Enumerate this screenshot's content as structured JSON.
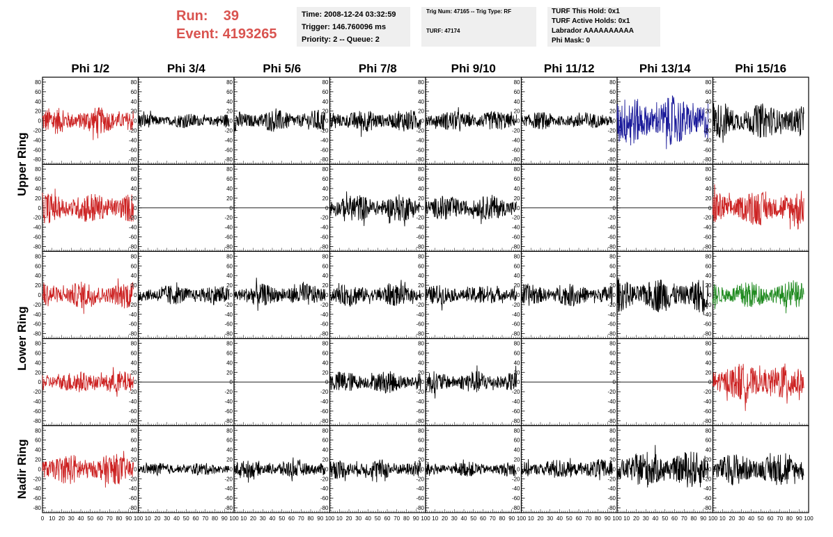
{
  "header": {
    "run_label": "Run:",
    "run_value": "39",
    "event_label": "Event:",
    "event_value": "4193265",
    "label_color": "#d9534f"
  },
  "info": {
    "box1": [
      "Time: 2008-12-24 03:32:59",
      "Trigger: 146.760096 ms",
      "Priority: 2 -- Queue: 2"
    ],
    "box2": [
      "Trig Num: 47165 -- Trig Type: RF",
      "TURF: 47174"
    ],
    "box3": [
      "TURF This Hold: 0x1",
      "TURF Active Holds: 0x1",
      "Labrador AAAAAAAAAA",
      "Phi Mask: 0"
    ]
  },
  "columns": [
    "Phi 1/2",
    "Phi 3/4",
    "Phi 5/6",
    "Phi 7/8",
    "Phi 9/10",
    "Phi 11/12",
    "Phi 13/14",
    "Phi 15/16"
  ],
  "ring_labels": [
    "Upper Ring",
    "Lower Ring",
    "Nadir Ring"
  ],
  "chart_data": {
    "type": "line",
    "y_ticks": [
      80,
      60,
      40,
      20,
      0,
      -20,
      -40,
      -60,
      -80
    ],
    "x_ticks": [
      0,
      10,
      20,
      30,
      40,
      50,
      60,
      70,
      80,
      90,
      100
    ],
    "x_tick_labels_printed": "0 10 20 30 40 50 60 70 80 90 100",
    "ylim": [
      -90,
      90
    ],
    "xlim": [
      0,
      100
    ],
    "colors": {
      "red": "#cc2222",
      "black": "#000000",
      "blue": "#1a1a9a",
      "green": "#1f8a1f"
    },
    "panels": [
      [
        "red",
        "black",
        "black",
        "black",
        "black",
        "black",
        "blue",
        "black"
      ],
      [
        "red",
        "flat",
        "flat",
        "black",
        "black",
        "flat",
        "flat",
        "red"
      ],
      [
        "red",
        "black",
        "black",
        "black",
        "black",
        "black",
        "black",
        "green"
      ],
      [
        "red",
        "flat",
        "flat",
        "black",
        "black",
        "flat",
        "flat",
        "red"
      ],
      [
        "red",
        "black",
        "black",
        "black",
        "black",
        "black",
        "black",
        "black"
      ]
    ],
    "amplitudes": [
      [
        22,
        12,
        18,
        18,
        16,
        14,
        40,
        28
      ],
      [
        25,
        0,
        0,
        22,
        20,
        0,
        0,
        28
      ],
      [
        22,
        16,
        18,
        18,
        16,
        18,
        28,
        22
      ],
      [
        18,
        0,
        0,
        18,
        18,
        0,
        0,
        30
      ],
      [
        25,
        10,
        14,
        16,
        12,
        16,
        30,
        26
      ]
    ]
  }
}
